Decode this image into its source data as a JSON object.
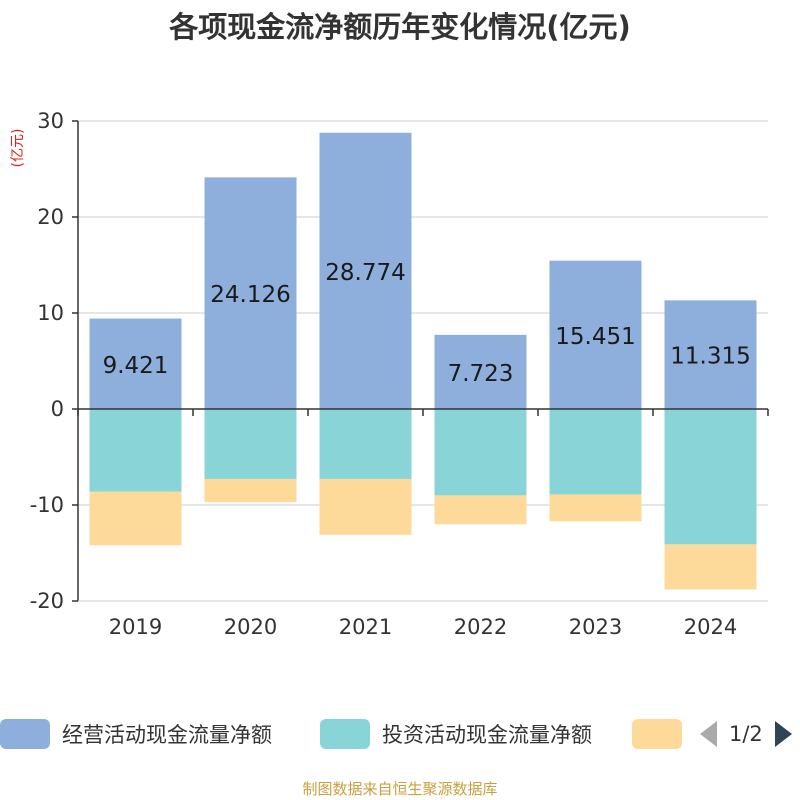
{
  "chart_data": {
    "type": "bar",
    "stacked": true,
    "title": "各项现金流净额历年变化情况(亿元)",
    "ylabel": "(亿元)",
    "categories": [
      "2019",
      "2020",
      "2021",
      "2022",
      "2023",
      "2024"
    ],
    "ylim": [
      -20,
      30
    ],
    "yticks": [
      "30",
      "20",
      "10",
      "0",
      "-10",
      "-20"
    ],
    "grid": true,
    "legend_position": "bottom",
    "series": [
      {
        "name": "经营活动现金流量净额",
        "color": "#8eaedb",
        "values": [
          9.421,
          24.126,
          28.774,
          7.723,
          15.451,
          11.315
        ],
        "labels": [
          "9.421",
          "24.126",
          "28.774",
          "7.723",
          "15.451",
          "11.315"
        ]
      },
      {
        "name": "投资活动现金流量净额",
        "color": "#88d4d6",
        "values": [
          -8.6,
          -7.3,
          -7.3,
          -9.0,
          -8.9,
          -14.1
        ]
      },
      {
        "name": "",
        "color": "#fdd99a",
        "values": [
          -5.6,
          -2.4,
          -5.8,
          -3.0,
          -2.8,
          -4.7
        ]
      }
    ]
  },
  "legend": {
    "items": [
      {
        "label": "经营活动现金流量净额",
        "color": "#8eaedb"
      },
      {
        "label": "投资活动现金流量净额",
        "color": "#88d4d6"
      },
      {
        "label": "",
        "color": "#fdd99a"
      }
    ],
    "page": "1/2"
  },
  "source_note": "制图数据来自恒生聚源数据库"
}
